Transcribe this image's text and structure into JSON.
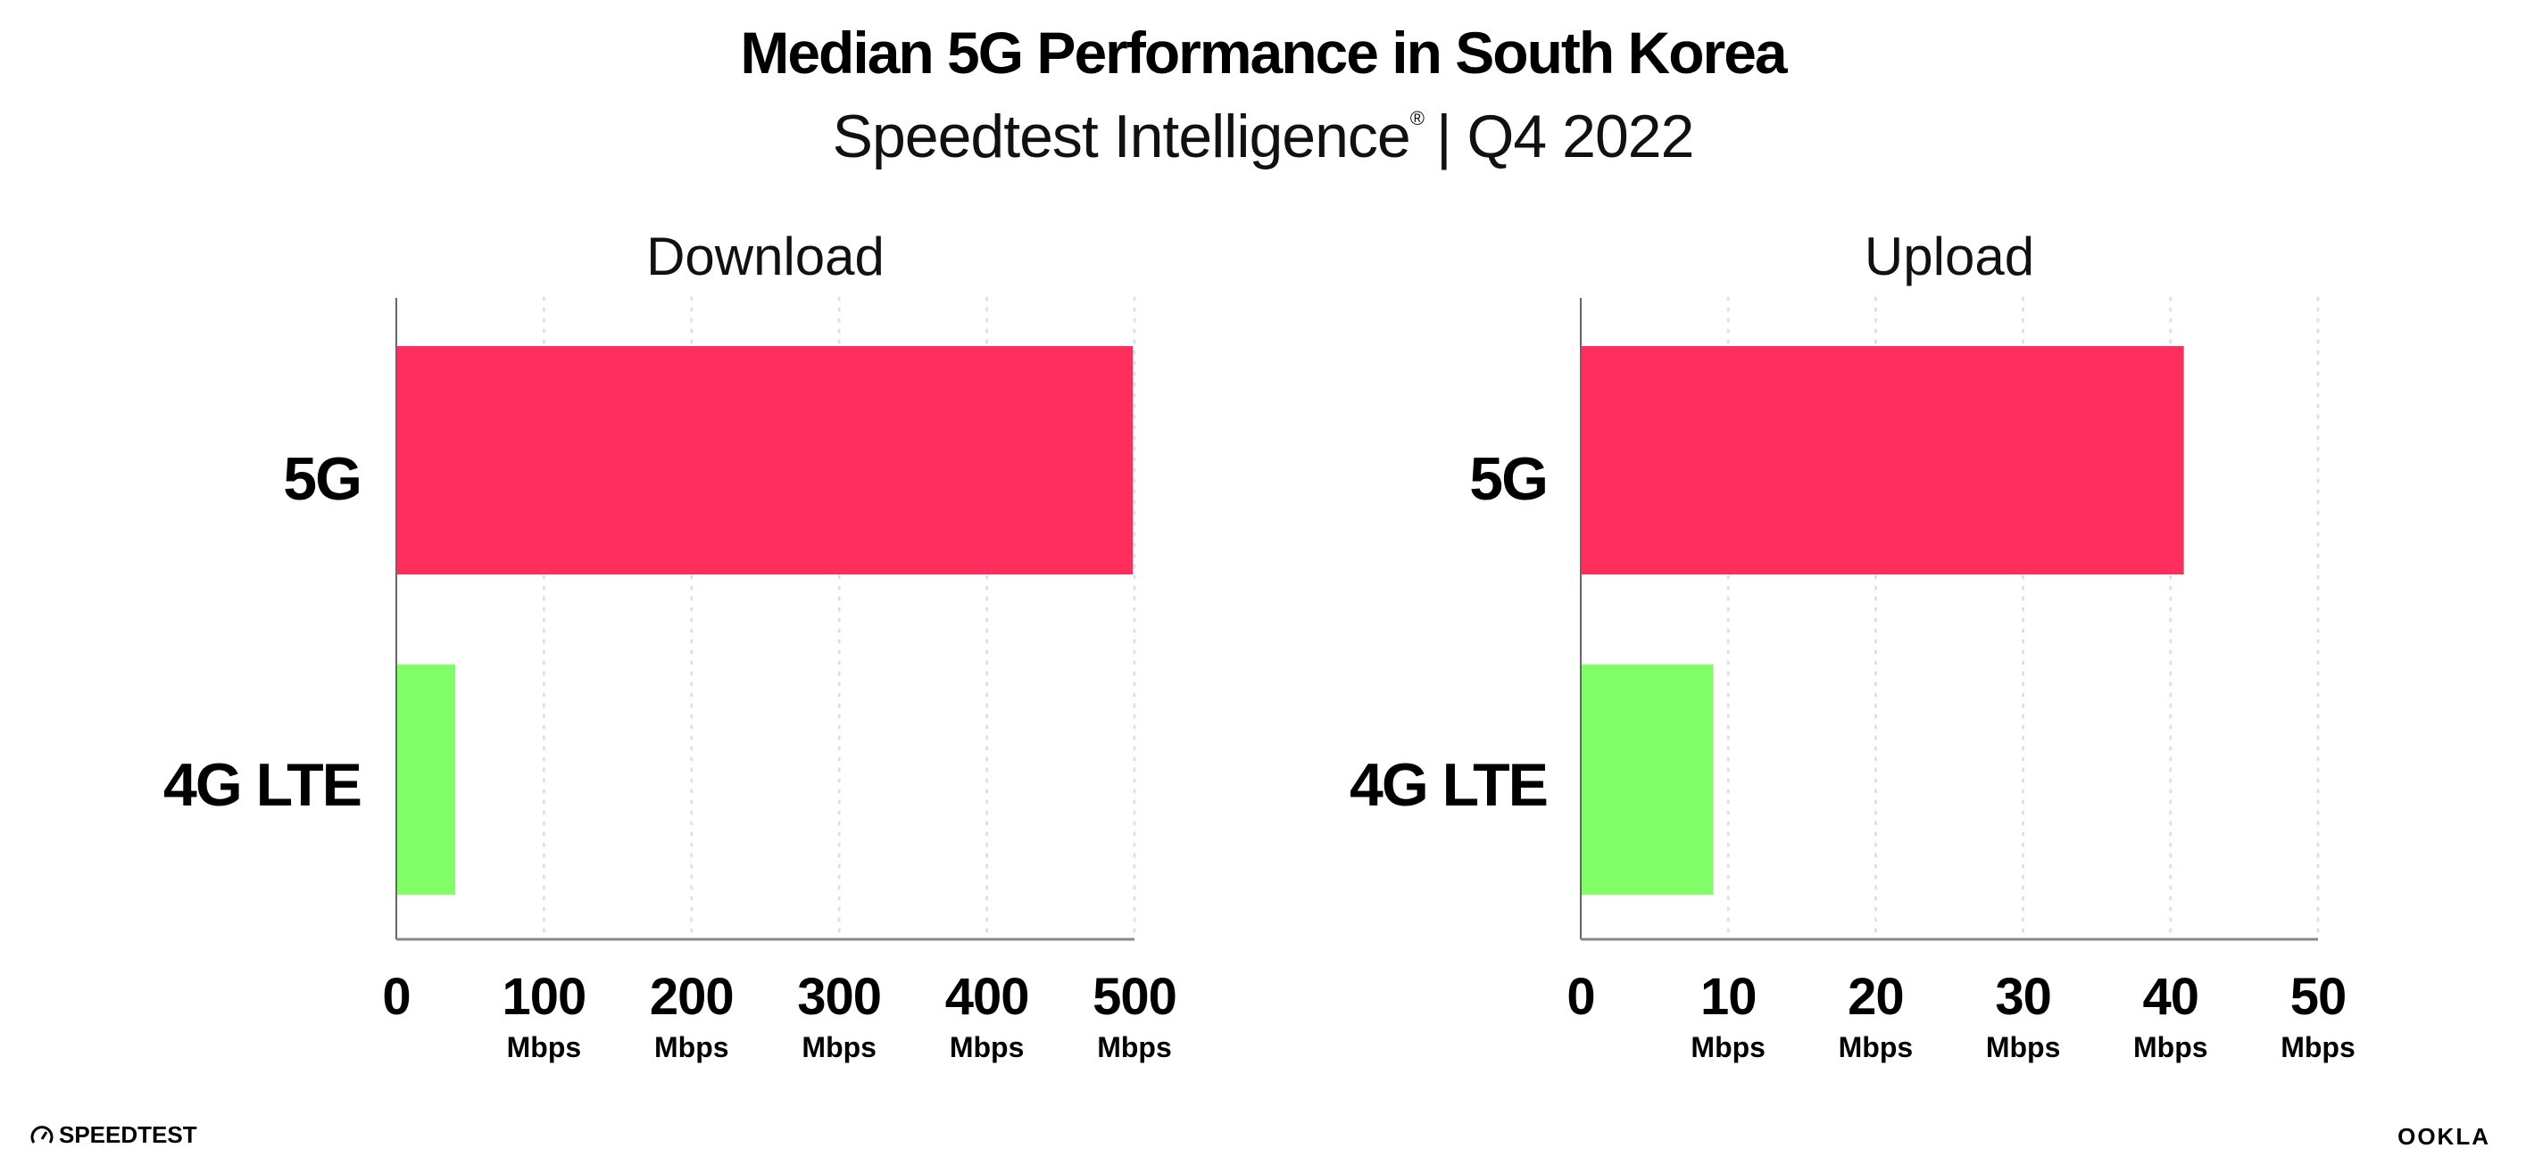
{
  "header": {
    "title": "Median 5G Performance in South Korea",
    "subtitle": "Speedtest Intelligence",
    "subtitle_mark": "®",
    "subtitle_period": "| Q4 2022"
  },
  "chart_data": [
    {
      "type": "bar",
      "orientation": "horizontal",
      "title": "Download",
      "categories": [
        "5G",
        "4G LTE"
      ],
      "values": [
        499,
        40
      ],
      "colors": [
        "#ff2e5c",
        "#80ff66"
      ],
      "xlim": [
        0,
        500
      ],
      "ticks": [
        "0",
        "100",
        "200",
        "300",
        "400",
        "500"
      ],
      "tick_values": [
        0,
        100,
        200,
        300,
        400,
        500
      ],
      "unit": "Mbps",
      "grid": "vertical dotted"
    },
    {
      "type": "bar",
      "orientation": "horizontal",
      "title": "Upload",
      "categories": [
        "5G",
        "4G LTE"
      ],
      "values": [
        40.9,
        9.0
      ],
      "colors": [
        "#ff2e5c",
        "#80ff66"
      ],
      "xlim": [
        0,
        50
      ],
      "ticks": [
        "0",
        "10",
        "20",
        "30",
        "40",
        "50"
      ],
      "tick_values": [
        0,
        10,
        20,
        30,
        40,
        50
      ],
      "unit": "Mbps",
      "grid": "vertical dotted"
    }
  ],
  "footer": {
    "left_logo": "SPEEDTEST",
    "right_logo": "OOKLA",
    "left_icon": "speedometer-icon"
  }
}
